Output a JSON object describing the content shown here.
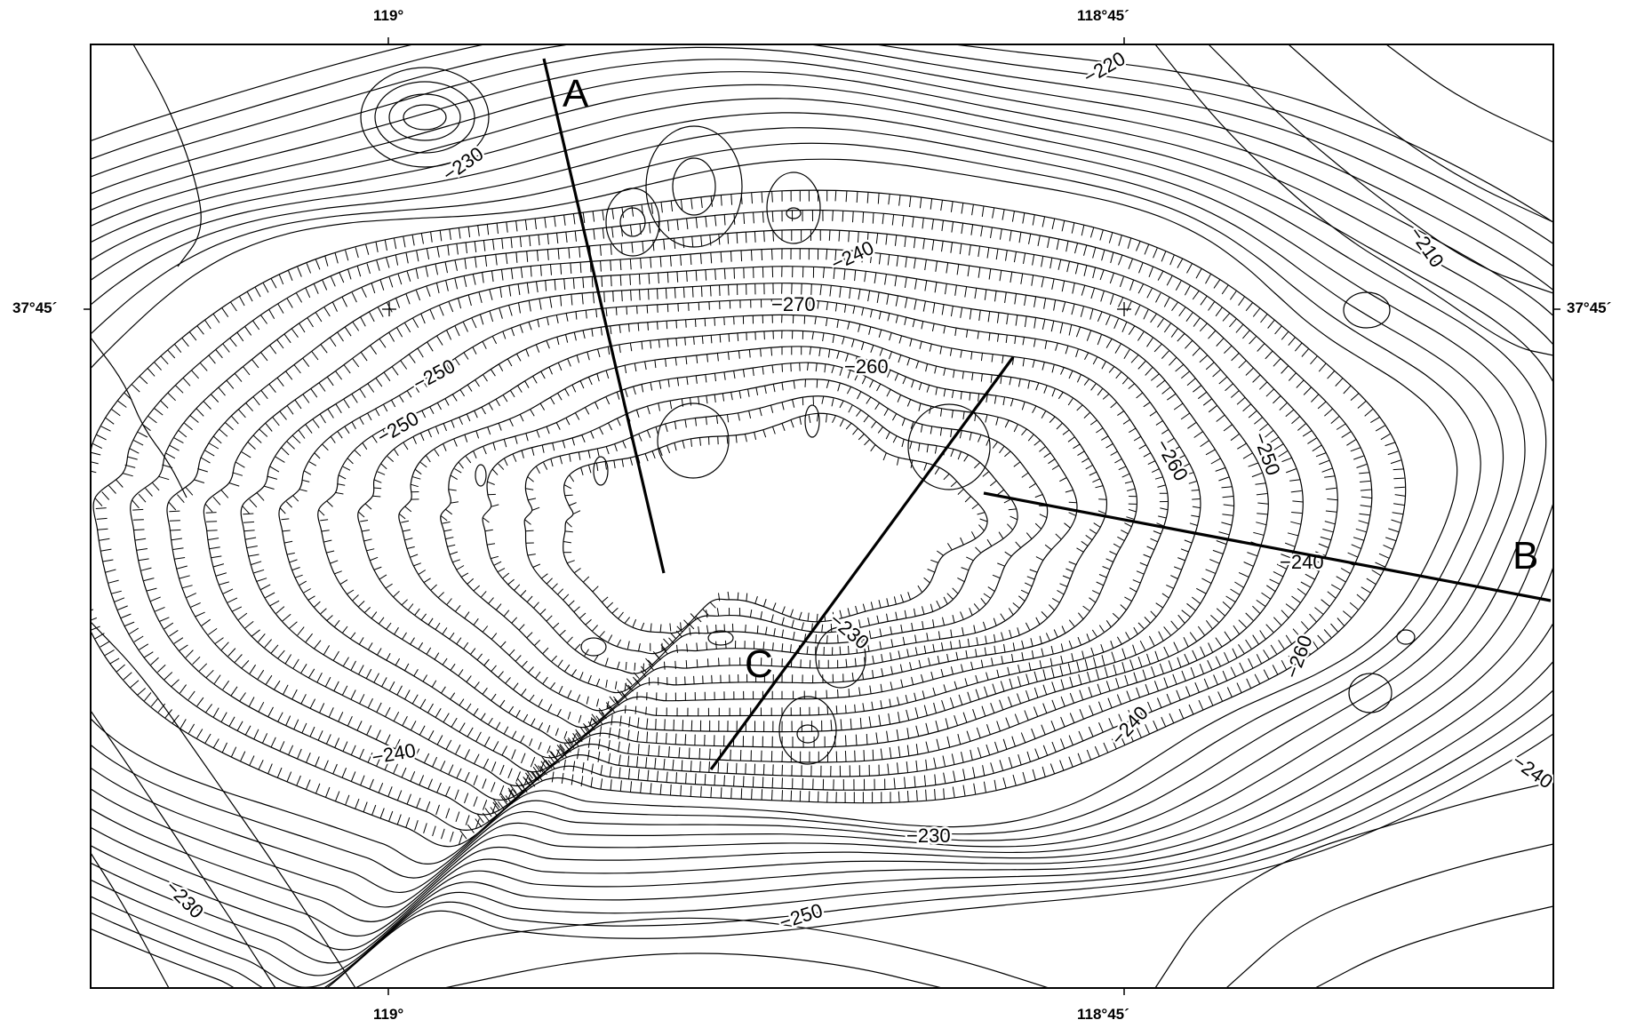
{
  "map": {
    "axes": {
      "top": [
        "119°",
        "118°45´"
      ],
      "bottom": [
        "119°",
        "118°45´"
      ],
      "left": [
        "37°45´"
      ],
      "right": [
        "37°45´"
      ]
    },
    "profile_lines": [
      {
        "label": "A"
      },
      {
        "label": "B"
      },
      {
        "label": "C"
      }
    ],
    "contour_labels": [
      "230",
      "240",
      "250",
      "260",
      "270",
      "260",
      "250",
      "240",
      "230",
      "220",
      "210",
      "240",
      "230",
      "250",
      "260",
      "240",
      "230",
      "250",
      "240"
    ],
    "contour_interval_style": "hachured depression contours",
    "colors": {
      "line": "#000000",
      "background": "#ffffff"
    }
  }
}
